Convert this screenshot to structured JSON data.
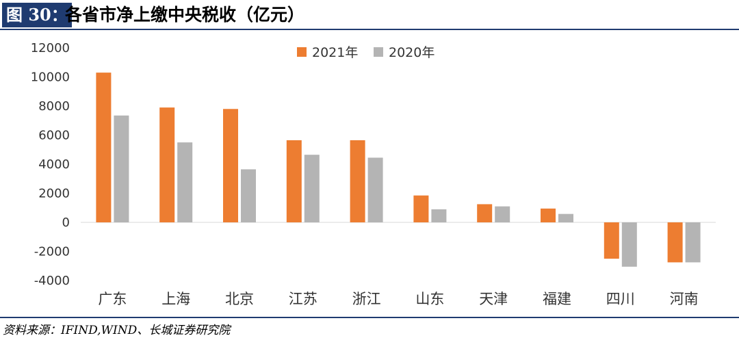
{
  "header": {
    "figure_label": "图 30：",
    "title": "各省市净上缴中央税收（亿元）"
  },
  "footer": {
    "source": "资料来源：IFIND,WIND、长城证券研究院"
  },
  "colors": {
    "series_2021": "#ed7d31",
    "series_2020": "#b4b4b4",
    "accent": "#1f3b70"
  },
  "chart_data": {
    "type": "bar",
    "title": "各省市净上缴中央税收（亿元）",
    "xlabel": "",
    "ylabel": "",
    "categories": [
      "广东",
      "上海",
      "北京",
      "江苏",
      "浙江",
      "山东",
      "天津",
      "福建",
      "四川",
      "河南"
    ],
    "series": [
      {
        "name": "2021年",
        "color": "#ed7d31",
        "values": [
          10300,
          7900,
          7800,
          5650,
          5650,
          1850,
          1250,
          950,
          -2500,
          -2750
        ]
      },
      {
        "name": "2020年",
        "color": "#b4b4b4",
        "values": [
          7350,
          5500,
          3650,
          4650,
          4450,
          900,
          1100,
          580,
          -3050,
          -2750
        ]
      }
    ],
    "ylim": [
      -4000,
      12000
    ],
    "yticks": [
      12000,
      10000,
      8000,
      6000,
      4000,
      2000,
      0,
      -2000,
      -4000
    ],
    "grid": false,
    "legend_position": "top-center"
  }
}
